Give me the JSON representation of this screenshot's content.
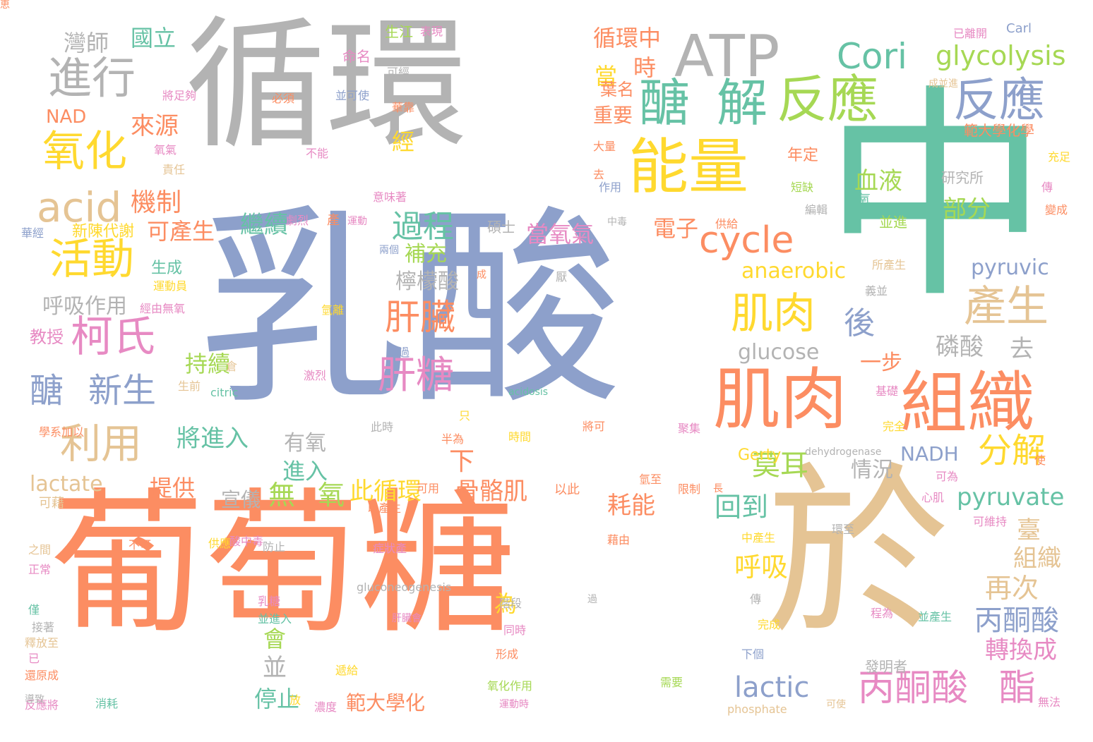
{
  "palette": {
    "gray": "#b3b3b3",
    "orange": "#fc8d62",
    "blue": "#8da0cb",
    "green": "#66c2a5",
    "tan": "#e5c494",
    "yellow": "#ffd92f",
    "lime": "#a6d854",
    "pink": "#e78ac3"
  },
  "words": [
    {
      "text": "循環",
      "color": "gray"
    },
    {
      "text": "乳酸",
      "color": "blue"
    },
    {
      "text": "葡萄糖",
      "color": "orange"
    },
    {
      "text": "於",
      "color": "tan"
    },
    {
      "text": "中",
      "color": "green"
    },
    {
      "text": "ATP",
      "color": "gray"
    },
    {
      "text": "組織",
      "color": "orange"
    },
    {
      "text": "肌肉",
      "color": "orange"
    },
    {
      "text": "能量",
      "color": "yellow"
    },
    {
      "text": "醣",
      "color": "green"
    },
    {
      "text": "解",
      "color": "green"
    },
    {
      "text": "反應",
      "color": "lime"
    },
    {
      "text": "Cori",
      "color": "green"
    },
    {
      "text": "glycolysis",
      "color": "lime"
    },
    {
      "text": "反應",
      "color": "blue"
    },
    {
      "text": "進行",
      "color": "gray"
    },
    {
      "text": "氧化",
      "color": "yellow"
    },
    {
      "text": "acid",
      "color": "tan"
    },
    {
      "text": "活動",
      "color": "yellow"
    },
    {
      "text": "柯氏",
      "color": "pink"
    },
    {
      "text": "醣",
      "color": "blue"
    },
    {
      "text": "新生",
      "color": "blue"
    },
    {
      "text": "利用",
      "color": "tan"
    },
    {
      "text": "過程",
      "color": "green"
    },
    {
      "text": "cycle",
      "color": "orange"
    },
    {
      "text": "肌肉",
      "color": "yellow"
    },
    {
      "text": "產生",
      "color": "tan"
    },
    {
      "text": "後",
      "color": "blue"
    },
    {
      "text": "肝臟",
      "color": "orange"
    },
    {
      "text": "肝糖",
      "color": "pink"
    },
    {
      "text": "分解",
      "color": "yellow"
    },
    {
      "text": "丙酮酸",
      "color": "pink"
    },
    {
      "text": "酯",
      "color": "pink"
    },
    {
      "text": "lactic",
      "color": "blue"
    },
    {
      "text": "丙酮酸",
      "color": "blue"
    },
    {
      "text": "pyruvate",
      "color": "green"
    },
    {
      "text": "NADH",
      "color": "blue"
    },
    {
      "text": "anaerobic",
      "color": "yellow"
    },
    {
      "text": "glucose",
      "color": "gray"
    },
    {
      "text": "lactate",
      "color": "tan"
    },
    {
      "text": "pyruvic",
      "color": "blue"
    },
    {
      "text": "血液",
      "color": "lime"
    },
    {
      "text": "部分",
      "color": "lime"
    },
    {
      "text": "磷酸",
      "color": "gray"
    },
    {
      "text": "去",
      "color": "gray"
    },
    {
      "text": "一步",
      "color": "orange"
    },
    {
      "text": "莫耳",
      "color": "lime"
    },
    {
      "text": "情況",
      "color": "gray"
    },
    {
      "text": "呼吸",
      "color": "yellow"
    },
    {
      "text": "再次",
      "color": "tan"
    },
    {
      "text": "組織",
      "color": "tan"
    },
    {
      "text": "轉換成",
      "color": "pink"
    },
    {
      "text": "臺",
      "color": "tan"
    },
    {
      "text": "回到",
      "color": "green"
    },
    {
      "text": "停止",
      "color": "green"
    },
    {
      "text": "範大學化",
      "color": "orange"
    },
    {
      "text": "並",
      "color": "gray"
    },
    {
      "text": "會",
      "color": "lime"
    },
    {
      "text": "為",
      "color": "yellow"
    },
    {
      "text": "骨骼肌",
      "color": "orange"
    },
    {
      "text": "耗能",
      "color": "orange"
    },
    {
      "text": "此循環",
      "color": "yellow"
    },
    {
      "text": "無",
      "color": "lime"
    },
    {
      "text": "氧",
      "color": "lime"
    },
    {
      "text": "有氧",
      "color": "gray"
    },
    {
      "text": "進入",
      "color": "green"
    },
    {
      "text": "下",
      "color": "orange"
    },
    {
      "text": "檸檬酸",
      "color": "gray"
    },
    {
      "text": "補充",
      "color": "lime"
    },
    {
      "text": "持續",
      "color": "lime"
    },
    {
      "text": "將進入",
      "color": "green"
    },
    {
      "text": "宣儀",
      "color": "gray"
    },
    {
      "text": "提供",
      "color": "orange"
    },
    {
      "text": "當氧氣",
      "color": "pink"
    },
    {
      "text": "電子",
      "color": "orange"
    },
    {
      "text": "繼續",
      "color": "green"
    },
    {
      "text": "機制",
      "color": "orange"
    },
    {
      "text": "可產生",
      "color": "orange"
    },
    {
      "text": "呼吸作用",
      "color": "gray"
    },
    {
      "text": "新陳代謝",
      "color": "yellow"
    },
    {
      "text": "生成",
      "color": "green"
    },
    {
      "text": "來源",
      "color": "orange"
    },
    {
      "text": "當",
      "color": "yellow"
    },
    {
      "text": "時",
      "color": "orange"
    },
    {
      "text": "循環中",
      "color": "orange"
    },
    {
      "text": "重要",
      "color": "orange"
    },
    {
      "text": "葉名",
      "color": "orange"
    },
    {
      "text": "國立",
      "color": "green"
    },
    {
      "text": "灣師",
      "color": "gray"
    },
    {
      "text": "NAD",
      "color": "orange"
    },
    {
      "text": "教授",
      "color": "pink"
    },
    {
      "text": "經",
      "color": "yellow"
    },
    {
      "text": "範大學化學",
      "color": "orange"
    },
    {
      "text": "研究所",
      "color": "gray"
    },
    {
      "text": "Carl",
      "color": "blue"
    },
    {
      "text": "已離開",
      "color": "pink"
    },
    {
      "text": "Gerty",
      "color": "yellow"
    },
    {
      "text": "dehydrogenase",
      "color": "gray"
    },
    {
      "text": "phosphate",
      "color": "tan"
    },
    {
      "text": "gluconeogenesis",
      "color": "gray"
    },
    {
      "text": "acidosis",
      "color": "green"
    },
    {
      "text": "citric",
      "color": "green"
    },
    {
      "text": "年定",
      "color": "orange"
    },
    {
      "text": "發明者",
      "color": "gray"
    },
    {
      "text": "並進",
      "color": "lime"
    },
    {
      "text": "氧",
      "color": "green"
    },
    {
      "text": "生江",
      "color": "lime"
    },
    {
      "text": "表現",
      "color": "pink"
    },
    {
      "text": "命名",
      "color": "pink"
    },
    {
      "text": "可經",
      "color": "gray"
    },
    {
      "text": "並可使",
      "color": "blue"
    },
    {
      "text": "華靠",
      "color": "orange"
    },
    {
      "text": "將足夠",
      "color": "pink"
    },
    {
      "text": "必須",
      "color": "orange"
    },
    {
      "text": "成並進",
      "color": "tan"
    },
    {
      "text": "氧氣",
      "color": "pink"
    },
    {
      "text": "責任",
      "color": "tan"
    },
    {
      "text": "不能",
      "color": "pink"
    },
    {
      "text": "大量",
      "color": "orange"
    },
    {
      "text": "去",
      "color": "orange"
    },
    {
      "text": "作用",
      "color": "blue"
    },
    {
      "text": "短缺",
      "color": "lime"
    },
    {
      "text": "編輯",
      "color": "gray"
    },
    {
      "text": "供給",
      "color": "orange"
    },
    {
      "text": "中毒",
      "color": "gray"
    },
    {
      "text": "碩士",
      "color": "gray"
    },
    {
      "text": "劇烈",
      "color": "pink"
    },
    {
      "text": "產",
      "color": "orange"
    },
    {
      "text": "運動",
      "color": "pink"
    },
    {
      "text": "意味著",
      "color": "pink"
    },
    {
      "text": "兩個",
      "color": "blue"
    },
    {
      "text": "華經",
      "color": "blue"
    },
    {
      "text": "運動員",
      "color": "yellow"
    },
    {
      "text": "經由無氧",
      "color": "pink"
    },
    {
      "text": "氫離",
      "color": "yellow"
    },
    {
      "text": "生前",
      "color": "tan"
    },
    {
      "text": "倉",
      "color": "tan"
    },
    {
      "text": "激烈",
      "color": "pink"
    },
    {
      "text": "此過",
      "color": "blue"
    },
    {
      "text": "此時",
      "color": "gray"
    },
    {
      "text": "只",
      "color": "yellow"
    },
    {
      "text": "半為",
      "color": "orange"
    },
    {
      "text": "時間",
      "color": "yellow"
    },
    {
      "text": "將可",
      "color": "orange"
    },
    {
      "text": "聚集",
      "color": "pink"
    },
    {
      "text": "基礎",
      "color": "pink"
    },
    {
      "text": "完全",
      "color": "yellow"
    },
    {
      "text": "可為",
      "color": "pink"
    },
    {
      "text": "心肌",
      "color": "pink"
    },
    {
      "text": "可維持",
      "color": "pink"
    },
    {
      "text": "環至",
      "color": "gray"
    },
    {
      "text": "義並",
      "color": "gray"
    },
    {
      "text": "所產生",
      "color": "tan"
    },
    {
      "text": "成",
      "color": "orange"
    },
    {
      "text": "厭",
      "color": "gray"
    },
    {
      "text": "可用",
      "color": "orange"
    },
    {
      "text": "以此",
      "color": "orange"
    },
    {
      "text": "氫至",
      "color": "orange"
    },
    {
      "text": "限制",
      "color": "orange"
    },
    {
      "text": "長",
      "color": "orange"
    },
    {
      "text": "以產生",
      "color": "orange"
    },
    {
      "text": "中產生",
      "color": "yellow"
    },
    {
      "text": "症狀產",
      "color": "pink"
    },
    {
      "text": "藉由",
      "color": "orange"
    },
    {
      "text": "酸中毒",
      "color": "pink"
    },
    {
      "text": "不可",
      "color": "orange"
    },
    {
      "text": "供應",
      "color": "yellow"
    },
    {
      "text": "防止",
      "color": "gray"
    },
    {
      "text": "之間",
      "color": "tan"
    },
    {
      "text": "正常",
      "color": "pink"
    },
    {
      "text": "僅",
      "color": "green"
    },
    {
      "text": "接著",
      "color": "gray"
    },
    {
      "text": "釋放至",
      "color": "tan"
    },
    {
      "text": "已",
      "color": "pink"
    },
    {
      "text": "還原成",
      "color": "orange"
    },
    {
      "text": "反應將",
      "color": "pink"
    },
    {
      "text": "消耗",
      "color": "green"
    },
    {
      "text": "濃度",
      "color": "pink"
    },
    {
      "text": "運動時",
      "color": "pink"
    },
    {
      "text": "氧化作用",
      "color": "lime"
    },
    {
      "text": "需要",
      "color": "lime"
    },
    {
      "text": "形成",
      "color": "orange"
    },
    {
      "text": "同時",
      "color": "pink"
    },
    {
      "text": "階段",
      "color": "gray"
    },
    {
      "text": "肝臟會",
      "color": "pink"
    },
    {
      "text": "乳糖",
      "color": "pink"
    },
    {
      "text": "並進入",
      "color": "green"
    },
    {
      "text": "過",
      "color": "gray"
    },
    {
      "text": "傳",
      "color": "gray"
    },
    {
      "text": "下個",
      "color": "blue"
    },
    {
      "text": "完成",
      "color": "yellow"
    },
    {
      "text": "程為",
      "color": "pink"
    },
    {
      "text": "並產生",
      "color": "green"
    },
    {
      "text": "可使",
      "color": "tan"
    },
    {
      "text": "無法",
      "color": "pink"
    },
    {
      "text": "遞給",
      "color": "yellow"
    },
    {
      "text": "放",
      "color": "yellow"
    },
    {
      "text": "導致",
      "color": "gray"
    },
    {
      "text": "可藉",
      "color": "tan"
    },
    {
      "text": "學系加以",
      "color": "orange"
    },
    {
      "text": "使",
      "color": "orange"
    },
    {
      "text": "傳",
      "color": "pink"
    },
    {
      "text": "變成",
      "color": "orange"
    },
    {
      "text": "充足",
      "color": "yellow"
    },
    {
      "text": "恵",
      "color": "orange"
    }
  ]
}
